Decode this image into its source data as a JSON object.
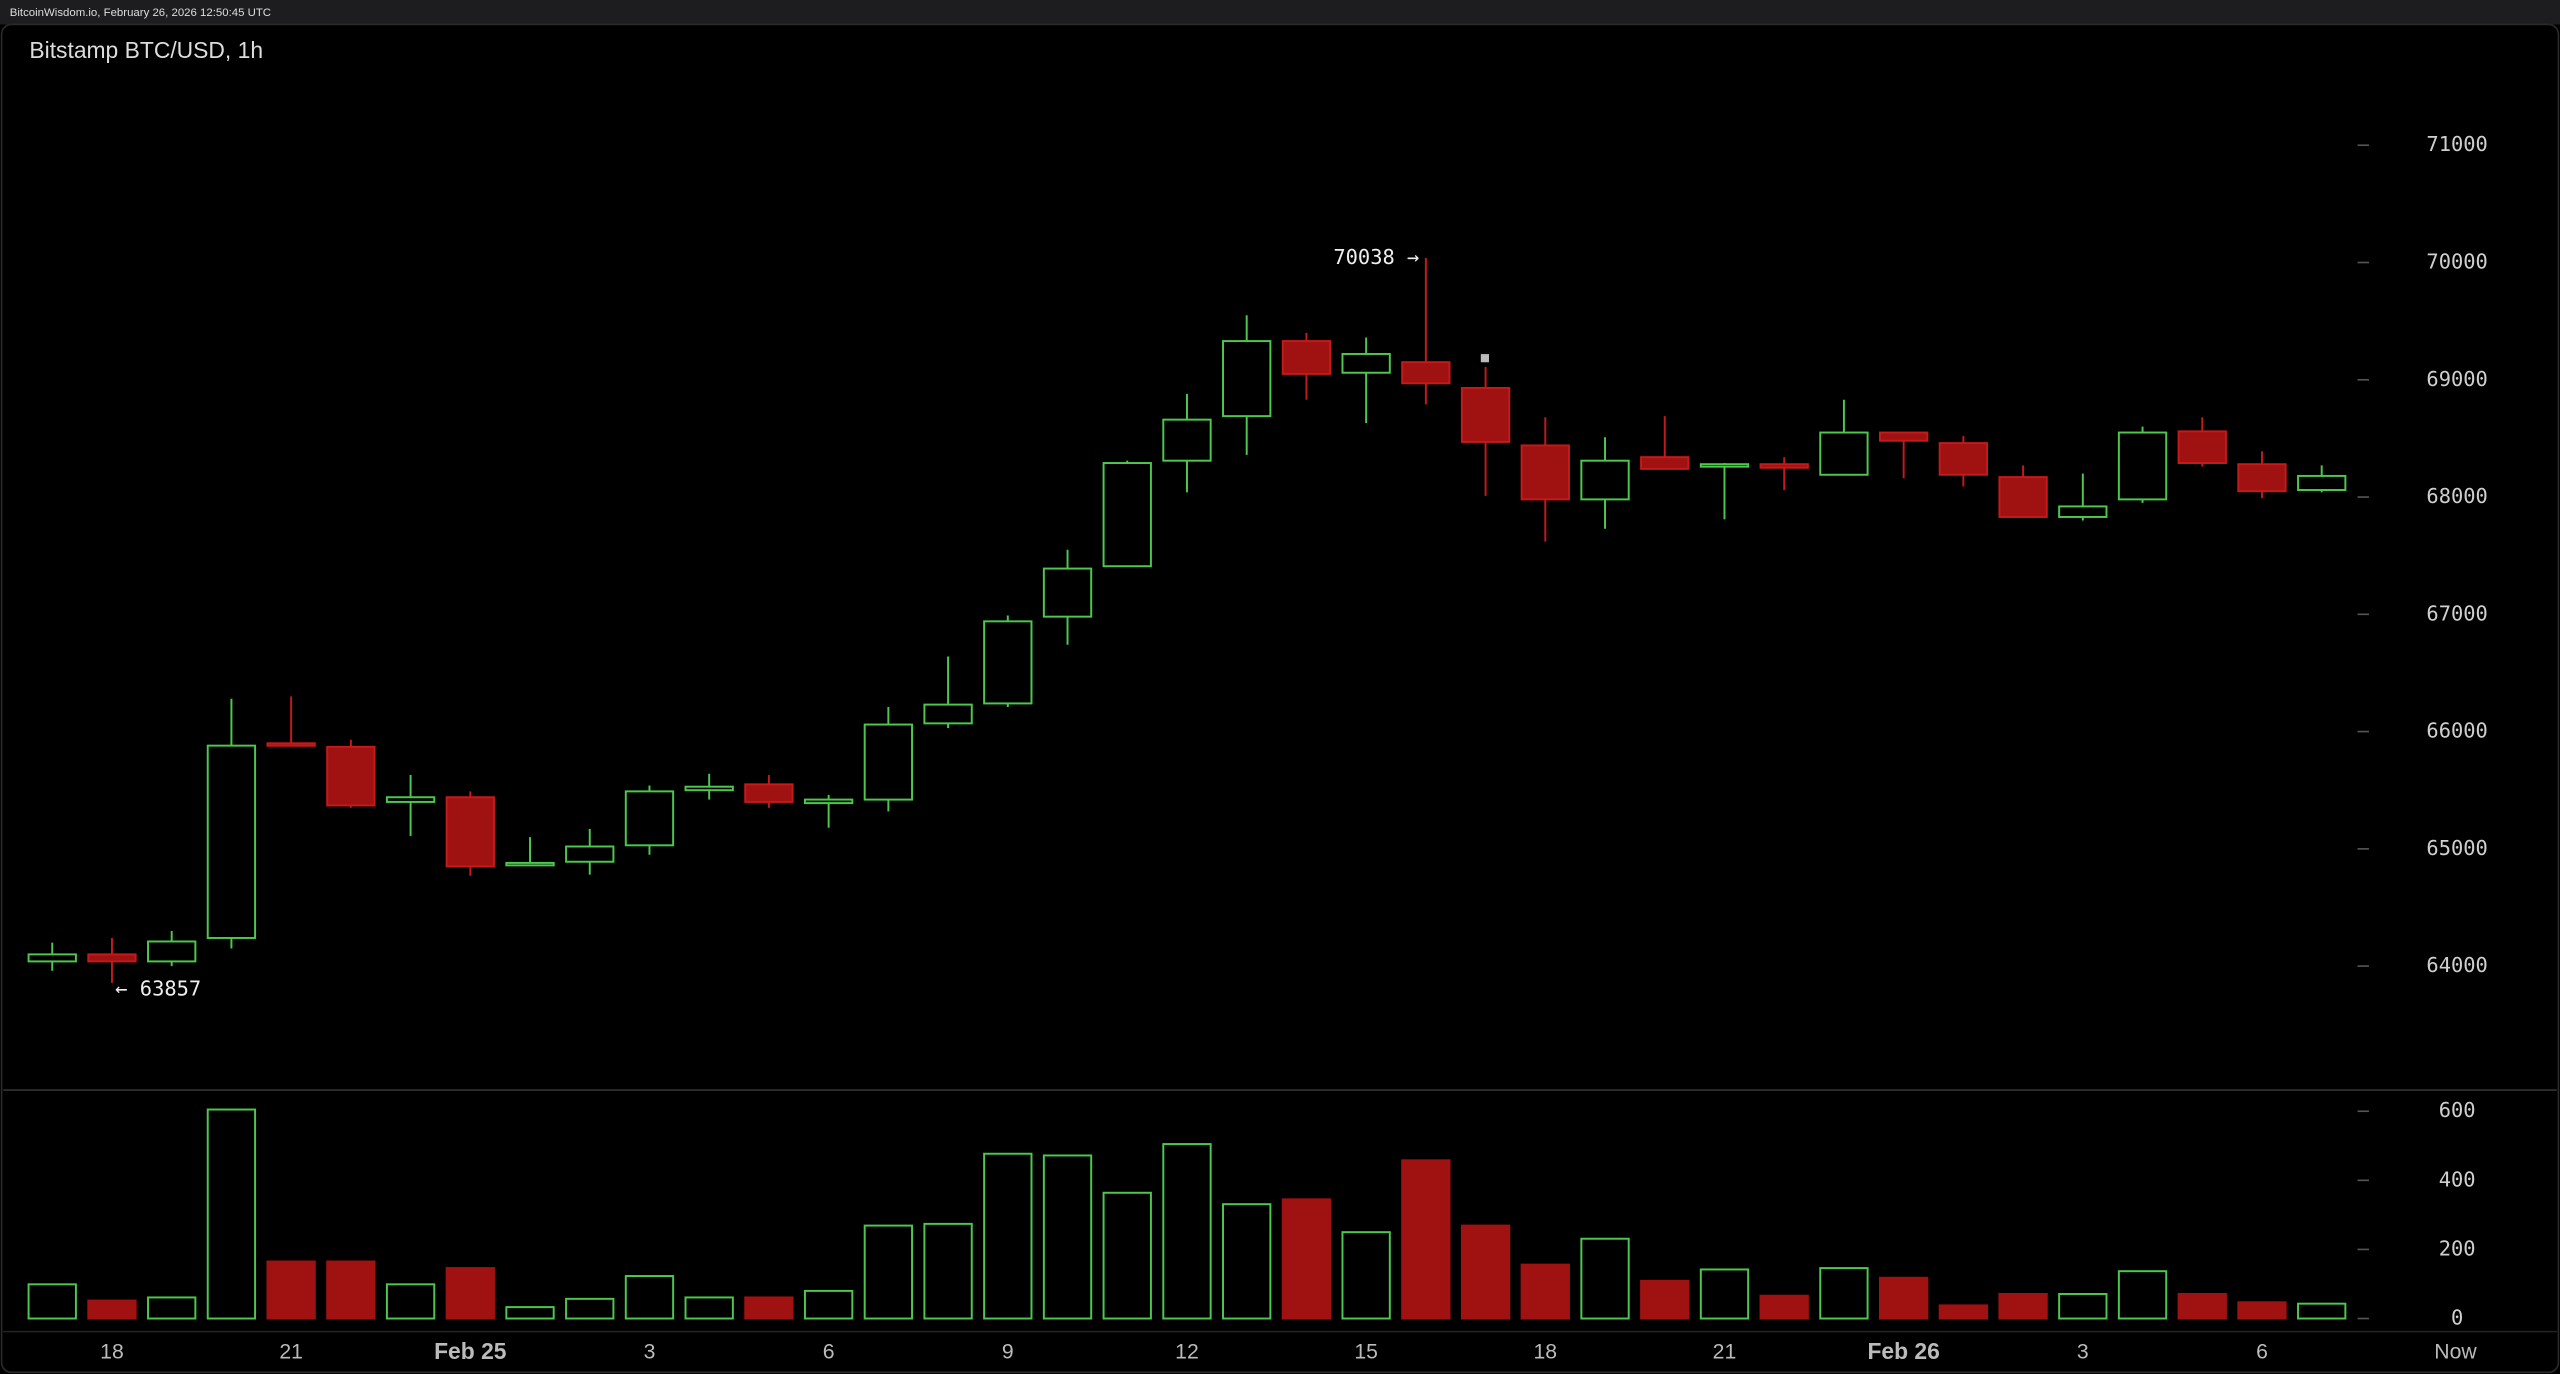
{
  "header": {
    "text": "BitcoinWisdom.io, February 26, 2026 12:50:45 UTC"
  },
  "chart_data": {
    "type": "candlestick",
    "title": "Bitstamp BTC/USD, 1h",
    "categories": [
      null,
      "18",
      null,
      null,
      "21",
      null,
      null,
      "Feb 25",
      null,
      null,
      "3",
      null,
      null,
      "6",
      null,
      null,
      "9",
      null,
      null,
      "12",
      null,
      null,
      "15",
      null,
      null,
      "18",
      null,
      null,
      "21",
      null,
      null,
      "Feb 26",
      null,
      null,
      "3",
      null,
      null,
      "6",
      null
    ],
    "now_label": "Now",
    "open": [
      64040,
      64100,
      64040,
      64240,
      65900,
      65870,
      65400,
      65440,
      64870,
      64890,
      65030,
      65500,
      65550,
      65390,
      65420,
      66070,
      66240,
      66980,
      67410,
      68310,
      68690,
      69330,
      69060,
      69150,
      68930,
      68440,
      67980,
      68340,
      68260,
      68280,
      68190,
      68550,
      68460,
      68170,
      67830,
      67980,
      68560,
      68280,
      68060
    ],
    "high": [
      64200,
      64240,
      64300,
      66280,
      66300,
      65930,
      65630,
      65490,
      65100,
      65170,
      65540,
      65640,
      65630,
      65460,
      66210,
      66640,
      66990,
      67550,
      68310,
      68880,
      69550,
      69400,
      69360,
      70038,
      69110,
      68680,
      68510,
      68690,
      68290,
      68340,
      68830,
      68550,
      68520,
      68270,
      68200,
      68600,
      68680,
      68390,
      68270
    ],
    "low": [
      63960,
      63857,
      64000,
      64150,
      65880,
      65350,
      65110,
      64770,
      64870,
      64780,
      64950,
      65420,
      65350,
      65180,
      65320,
      66030,
      66210,
      66740,
      67410,
      68040,
      68360,
      68830,
      68630,
      68790,
      68010,
      67620,
      67730,
      68240,
      67810,
      68060,
      68190,
      68160,
      68090,
      67830,
      67800,
      67950,
      68260,
      67990,
      68040
    ],
    "close": [
      64100,
      64040,
      64210,
      65880,
      65880,
      65370,
      65440,
      64850,
      64880,
      65020,
      65490,
      65530,
      65400,
      65420,
      66060,
      66230,
      66940,
      67390,
      68290,
      68660,
      69330,
      69050,
      69220,
      68970,
      68470,
      67980,
      68310,
      68240,
      68280,
      68250,
      68550,
      68480,
      68190,
      67830,
      67920,
      68550,
      68290,
      68050,
      68180
    ],
    "volume": [
      99,
      52,
      61,
      605,
      165,
      165,
      99,
      146,
      33,
      57,
      123,
      61,
      61,
      80,
      269,
      274,
      477,
      472,
      364,
      505,
      331,
      345,
      250,
      458,
      269,
      156,
      231,
      109,
      142,
      66,
      146,
      118,
      38,
      71,
      71,
      137,
      71,
      47,
      43
    ],
    "high_label": "70038 →",
    "low_label": "← 63857",
    "ylim": [
      63000,
      71700
    ],
    "yticks": [
      64000,
      65000,
      66000,
      67000,
      68000,
      69000,
      70000,
      71000
    ],
    "y2lim": [
      0,
      650
    ],
    "y2ticks": [
      0,
      200,
      400,
      600
    ],
    "up_color": "#4cc94c",
    "down_color": "#a01212"
  }
}
